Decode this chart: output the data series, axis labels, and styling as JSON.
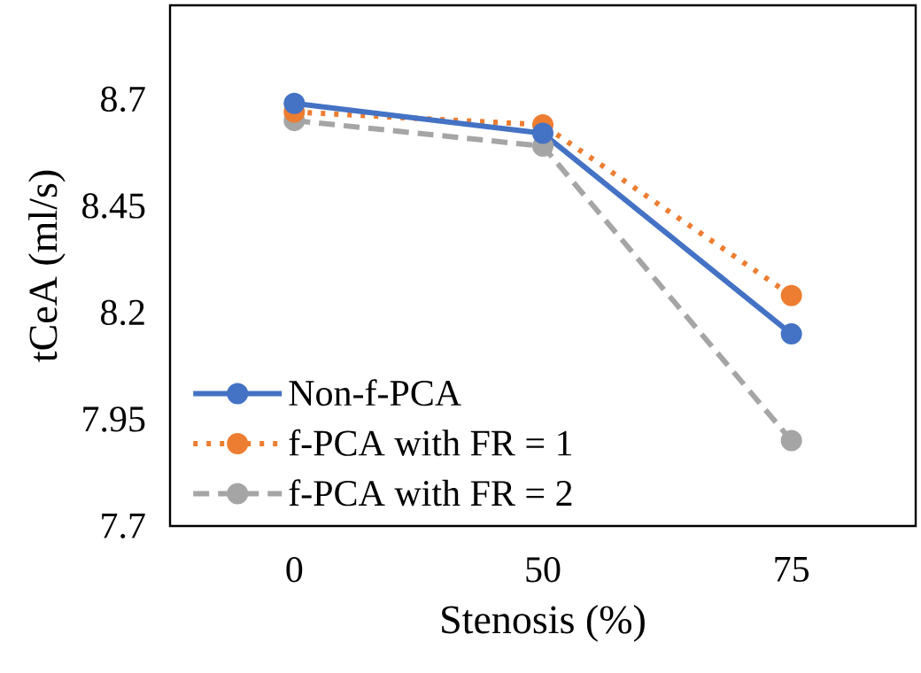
{
  "chart_data": {
    "type": "line",
    "xlabel": "Stenosis (%)",
    "ylabel": "tCeA (ml/s)",
    "categories": [
      "0",
      "50",
      "75"
    ],
    "series": [
      {
        "name": "Non-f-PCA",
        "color": "#4472c4",
        "line_style": "solid",
        "values": [
          8.69,
          8.62,
          8.15
        ]
      },
      {
        "name": "f-PCA with FR = 1",
        "color": "#ed7d31",
        "line_style": "dotted",
        "values": [
          8.67,
          8.64,
          8.24
        ]
      },
      {
        "name": "f-PCA with FR = 2",
        "color": "#a5a5a5",
        "line_style": "dashed",
        "values": [
          8.65,
          8.59,
          7.9
        ]
      }
    ],
    "ylim": [
      7.7,
      8.92
    ],
    "yticks": [
      7.7,
      7.95,
      8.2,
      8.45,
      8.7
    ],
    "marker": "circle",
    "legend": "bottom left",
    "grid": false
  }
}
